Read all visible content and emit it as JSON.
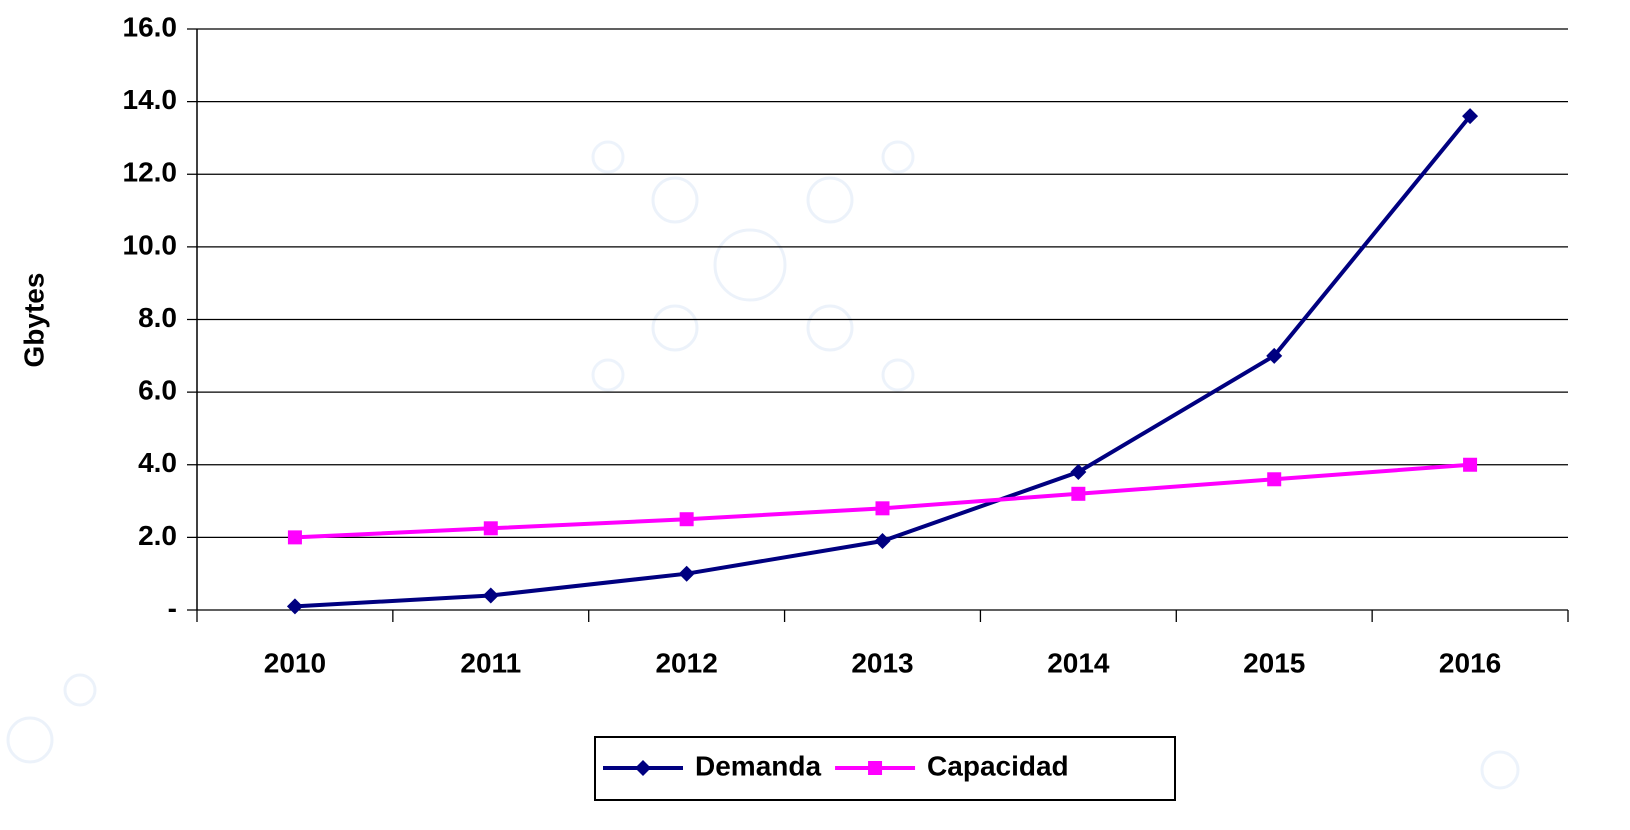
{
  "chart_data": {
    "type": "line",
    "y_label": "Gbytes",
    "categories": [
      "2010",
      "2011",
      "2012",
      "2013",
      "2014",
      "2015",
      "2016"
    ],
    "series": [
      {
        "name": "Demanda",
        "color": "#000080",
        "marker": "diamond",
        "values": [
          0.1,
          0.4,
          1.0,
          1.9,
          3.8,
          7.0,
          13.6
        ]
      },
      {
        "name": "Capacidad",
        "color": "#ff00ff",
        "marker": "square",
        "values": [
          2.0,
          2.25,
          2.5,
          2.8,
          3.2,
          3.6,
          4.0
        ]
      }
    ],
    "ylim": [
      0,
      16
    ],
    "yticks": [
      {
        "value": 0,
        "label": "-"
      },
      {
        "value": 2,
        "label": "2.0"
      },
      {
        "value": 4,
        "label": "4.0"
      },
      {
        "value": 6,
        "label": "6.0"
      },
      {
        "value": 8,
        "label": "8.0"
      },
      {
        "value": 10,
        "label": "10.0"
      },
      {
        "value": 12,
        "label": "12.0"
      },
      {
        "value": 14,
        "label": "14.0"
      },
      {
        "value": 16,
        "label": "16.0"
      }
    ],
    "grid": true,
    "legend": "bottom"
  }
}
